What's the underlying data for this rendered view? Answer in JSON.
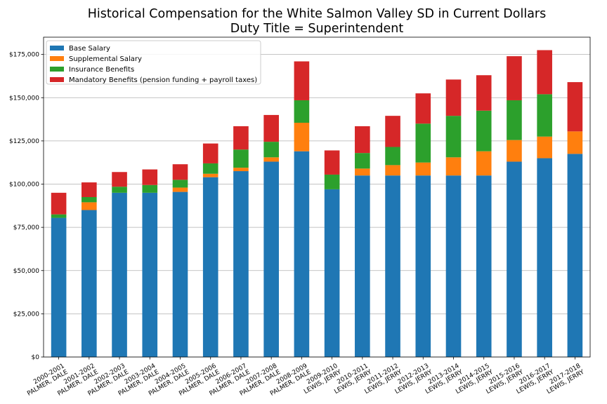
{
  "chart_data": {
    "type": "bar",
    "stacked": true,
    "title": "Historical Compensation for the White Salmon Valley SD in Current Dollars",
    "subtitle": "Duty Title = Superintendent",
    "xlabel": "",
    "ylabel": "",
    "ylim": [
      0,
      185000
    ],
    "yticks": [
      0,
      25000,
      50000,
      75000,
      100000,
      125000,
      150000,
      175000
    ],
    "ytick_labels": [
      "$0",
      "$25,000",
      "$50,000",
      "$75,000",
      "$100,000",
      "$125,000",
      "$150,000",
      "$175,000"
    ],
    "grid": "horizontal",
    "legend_position": "top-left",
    "categories": [
      [
        "2000-2001",
        "PALMER, DALE"
      ],
      [
        "2001-2002",
        "PALMER, DALE"
      ],
      [
        "2002-2003",
        "PALMER, DALE"
      ],
      [
        "2003-2004",
        "PALMER, DALE"
      ],
      [
        "2004-2005",
        "PALMER, DALE"
      ],
      [
        "2005-2006",
        "PALMER, DALE"
      ],
      [
        "2006-2007",
        "PALMER, DALE"
      ],
      [
        "2007-2008",
        "PALMER, DALE"
      ],
      [
        "2008-2009",
        "PALMER, DALE"
      ],
      [
        "2009-2010",
        "LEWIS, JERRY"
      ],
      [
        "2010-2011",
        "LEWIS, JERRY"
      ],
      [
        "2011-2012",
        "LEWIS, JERRY"
      ],
      [
        "2012-2013",
        "LEWIS, JERRY"
      ],
      [
        "2013-2014",
        "LEWIS, JERRY"
      ],
      [
        "2014-2015",
        "LEWIS, JERRY"
      ],
      [
        "2015-2016",
        "LEWIS, JERRY"
      ],
      [
        "2016-2017",
        "LEWIS, JERRY"
      ],
      [
        "2017-2018",
        "LEWIS, JERRY"
      ]
    ],
    "series": [
      {
        "name": "Base Salary",
        "color": "#1f77b4",
        "values": [
          80500,
          85000,
          95000,
          95000,
          95500,
          104000,
          107500,
          113000,
          119000,
          97000,
          105000,
          105000,
          105000,
          105000,
          105000,
          113000,
          115000,
          117500
        ]
      },
      {
        "name": "Supplemental Salary",
        "color": "#ff7f0e",
        "values": [
          0,
          4500,
          0,
          0,
          2500,
          2000,
          2000,
          2500,
          16500,
          0,
          4000,
          6000,
          7500,
          10500,
          14000,
          12500,
          12500,
          13000
        ]
      },
      {
        "name": "Insurance Benefits",
        "color": "#2ca02c",
        "values": [
          2000,
          3000,
          3500,
          4500,
          4500,
          6000,
          10500,
          9000,
          13000,
          8500,
          9000,
          10500,
          22500,
          24000,
          23500,
          23000,
          24500,
          0
        ]
      },
      {
        "name": "Mandatory Benefits (pension funding + payroll taxes)",
        "color": "#d62728",
        "values": [
          12500,
          8500,
          8500,
          9000,
          9000,
          11500,
          13500,
          15500,
          22500,
          14000,
          15500,
          18000,
          17500,
          21000,
          20500,
          25500,
          25500,
          28500
        ]
      }
    ]
  }
}
